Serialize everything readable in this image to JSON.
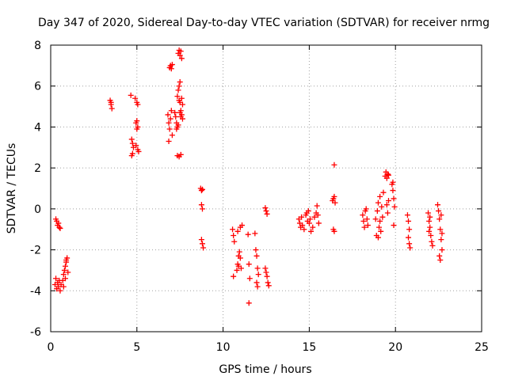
{
  "chart_data": {
    "type": "scatter",
    "title": "Day 347 of 2020, Sidereal Day-to-day VTEC variation (SDTVAR) for receiver nrmg",
    "xlabel": "GPS time / hours",
    "ylabel": "SDTVAR / TECUs",
    "xlim": [
      0,
      25
    ],
    "ylim": [
      -6,
      8
    ],
    "xticks": [
      0,
      5,
      10,
      15,
      20,
      25
    ],
    "yticks": [
      -6,
      -4,
      -2,
      0,
      2,
      4,
      6,
      8
    ],
    "grid": true,
    "marker": "+",
    "color": "#ff0000",
    "series": [
      {
        "name": "SDTVAR",
        "points": [
          [
            0.25,
            -3.7
          ],
          [
            0.3,
            -3.4
          ],
          [
            0.35,
            -3.9
          ],
          [
            0.4,
            -3.6
          ],
          [
            0.45,
            -3.8
          ],
          [
            0.5,
            -3.5
          ],
          [
            0.55,
            -4.0
          ],
          [
            0.6,
            -3.7
          ],
          [
            0.7,
            -3.5
          ],
          [
            0.75,
            -3.8
          ],
          [
            0.3,
            -0.5
          ],
          [
            0.35,
            -0.6
          ],
          [
            0.4,
            -0.8
          ],
          [
            0.45,
            -0.7
          ],
          [
            0.5,
            -0.9
          ],
          [
            0.55,
            -0.95
          ],
          [
            0.75,
            -3.2
          ],
          [
            0.8,
            -3.0
          ],
          [
            0.85,
            -2.8
          ],
          [
            0.9,
            -2.5
          ],
          [
            0.95,
            -2.4
          ],
          [
            1.0,
            -3.1
          ],
          [
            0.85,
            -3.4
          ],
          [
            0.9,
            -2.6
          ],
          [
            3.45,
            5.3
          ],
          [
            3.5,
            5.1
          ],
          [
            3.55,
            4.9
          ],
          [
            3.5,
            5.2
          ],
          [
            4.65,
            5.55
          ],
          [
            4.7,
            3.4
          ],
          [
            4.75,
            3.2
          ],
          [
            4.8,
            3.0
          ],
          [
            4.7,
            2.6
          ],
          [
            4.75,
            2.7
          ],
          [
            4.9,
            5.4
          ],
          [
            5.0,
            5.2
          ],
          [
            5.05,
            5.1
          ],
          [
            4.95,
            4.2
          ],
          [
            5.0,
            3.9
          ],
          [
            5.05,
            4.0
          ],
          [
            4.95,
            3.1
          ],
          [
            5.05,
            2.9
          ],
          [
            5.1,
            2.8
          ],
          [
            5.0,
            4.3
          ],
          [
            6.8,
            4.6
          ],
          [
            6.85,
            4.2
          ],
          [
            6.9,
            3.9
          ],
          [
            6.95,
            4.4
          ],
          [
            7.0,
            4.8
          ],
          [
            7.05,
            3.6
          ],
          [
            6.85,
            3.3
          ],
          [
            6.9,
            6.9
          ],
          [
            6.95,
            7.0
          ],
          [
            7.0,
            6.85
          ],
          [
            7.05,
            7.05
          ],
          [
            7.2,
            4.7
          ],
          [
            7.25,
            4.5
          ],
          [
            7.3,
            4.2
          ],
          [
            7.35,
            5.5
          ],
          [
            7.4,
            5.8
          ],
          [
            7.45,
            6.0
          ],
          [
            7.5,
            6.2
          ],
          [
            7.3,
            3.9
          ],
          [
            7.35,
            4.0
          ],
          [
            7.4,
            4.1
          ],
          [
            7.45,
            5.3
          ],
          [
            7.5,
            5.2
          ],
          [
            7.55,
            4.8
          ],
          [
            7.6,
            4.6
          ],
          [
            7.65,
            4.4
          ],
          [
            7.6,
            5.4
          ],
          [
            7.65,
            5.1
          ],
          [
            7.35,
            2.6
          ],
          [
            7.45,
            2.55
          ],
          [
            7.55,
            2.65
          ],
          [
            7.4,
            7.6
          ],
          [
            7.45,
            7.75
          ],
          [
            7.5,
            7.5
          ],
          [
            7.55,
            7.7
          ],
          [
            7.6,
            7.35
          ],
          [
            7.5,
            4.7
          ],
          [
            7.55,
            4.5
          ],
          [
            8.7,
            1.0
          ],
          [
            8.75,
            0.9
          ],
          [
            8.8,
            0.95
          ],
          [
            8.75,
            0.2
          ],
          [
            8.8,
            0.0
          ],
          [
            8.75,
            -1.5
          ],
          [
            8.8,
            -1.7
          ],
          [
            8.85,
            -1.9
          ],
          [
            10.55,
            -1.0
          ],
          [
            10.6,
            -1.3
          ],
          [
            10.65,
            -1.6
          ],
          [
            10.6,
            -3.3
          ],
          [
            10.8,
            -3.0
          ],
          [
            10.85,
            -2.7
          ],
          [
            10.9,
            -2.3
          ],
          [
            10.95,
            -2.1
          ],
          [
            11.0,
            -2.4
          ],
          [
            11.05,
            -2.9
          ],
          [
            11.0,
            -0.9
          ],
          [
            11.1,
            -0.8
          ],
          [
            10.85,
            -1.1
          ],
          [
            10.9,
            -2.8
          ],
          [
            11.45,
            -1.25
          ],
          [
            11.5,
            -2.7
          ],
          [
            11.55,
            -3.4
          ],
          [
            11.5,
            -4.6
          ],
          [
            11.85,
            -1.2
          ],
          [
            11.9,
            -2.0
          ],
          [
            11.95,
            -2.3
          ],
          [
            12.0,
            -2.9
          ],
          [
            12.05,
            -3.2
          ],
          [
            11.95,
            -3.6
          ],
          [
            12.0,
            -3.8
          ],
          [
            12.45,
            0.05
          ],
          [
            12.5,
            -0.1
          ],
          [
            12.55,
            -0.25
          ],
          [
            12.45,
            -2.9
          ],
          [
            12.5,
            -3.1
          ],
          [
            12.55,
            -3.3
          ],
          [
            12.6,
            -3.6
          ],
          [
            12.65,
            -3.75
          ],
          [
            14.4,
            -0.5
          ],
          [
            14.45,
            -0.7
          ],
          [
            14.5,
            -0.9
          ],
          [
            14.55,
            -0.4
          ],
          [
            14.6,
            -0.8
          ],
          [
            14.7,
            -1.0
          ],
          [
            14.8,
            -0.3
          ],
          [
            14.85,
            -0.2
          ],
          [
            14.9,
            -0.6
          ],
          [
            14.95,
            -0.1
          ],
          [
            15.0,
            -0.7
          ],
          [
            15.05,
            -0.5
          ],
          [
            15.1,
            -1.1
          ],
          [
            15.2,
            -0.9
          ],
          [
            15.3,
            -0.4
          ],
          [
            15.4,
            -0.2
          ],
          [
            15.45,
            0.15
          ],
          [
            15.5,
            -0.3
          ],
          [
            15.55,
            -0.7
          ],
          [
            16.35,
            0.4
          ],
          [
            16.4,
            0.5
          ],
          [
            16.45,
            0.6
          ],
          [
            16.5,
            0.3
          ],
          [
            16.45,
            2.15
          ],
          [
            16.4,
            -1.0
          ],
          [
            16.45,
            -1.1
          ],
          [
            18.1,
            -0.3
          ],
          [
            18.15,
            -0.6
          ],
          [
            18.2,
            -0.9
          ],
          [
            18.25,
            -0.1
          ],
          [
            18.3,
            0.0
          ],
          [
            18.35,
            -0.5
          ],
          [
            18.4,
            -0.8
          ],
          [
            18.85,
            -0.5
          ],
          [
            18.9,
            -1.3
          ],
          [
            18.95,
            -0.1
          ],
          [
            19.0,
            0.3
          ],
          [
            19.05,
            -0.9
          ],
          [
            19.1,
            0.6
          ],
          [
            19.15,
            -1.1
          ],
          [
            19.2,
            0.1
          ],
          [
            19.25,
            -0.4
          ],
          [
            19.3,
            0.8
          ],
          [
            19.0,
            -1.4
          ],
          [
            19.1,
            -0.6
          ],
          [
            19.4,
            1.6
          ],
          [
            19.45,
            1.8
          ],
          [
            19.5,
            1.5
          ],
          [
            19.55,
            1.7
          ],
          [
            19.6,
            1.65
          ],
          [
            19.5,
            0.2
          ],
          [
            19.55,
            -0.2
          ],
          [
            19.6,
            0.4
          ],
          [
            19.8,
            1.2
          ],
          [
            19.85,
            0.9
          ],
          [
            19.9,
            0.5
          ],
          [
            19.95,
            0.1
          ],
          [
            19.9,
            -0.8
          ],
          [
            19.85,
            1.3
          ],
          [
            20.7,
            -0.3
          ],
          [
            20.75,
            -0.6
          ],
          [
            20.8,
            -1.0
          ],
          [
            20.75,
            -1.4
          ],
          [
            20.8,
            -1.7
          ],
          [
            20.85,
            -1.9
          ],
          [
            21.9,
            -0.2
          ],
          [
            21.95,
            -0.6
          ],
          [
            22.0,
            -0.9
          ],
          [
            22.05,
            -1.3
          ],
          [
            22.1,
            -1.6
          ],
          [
            22.15,
            -1.8
          ],
          [
            21.95,
            -1.1
          ],
          [
            22.0,
            -0.4
          ],
          [
            22.45,
            0.2
          ],
          [
            22.5,
            -0.1
          ],
          [
            22.55,
            -0.5
          ],
          [
            22.6,
            -1.0
          ],
          [
            22.65,
            -1.5
          ],
          [
            22.7,
            -2.0
          ],
          [
            22.55,
            -2.3
          ],
          [
            22.6,
            -2.5
          ],
          [
            22.65,
            -0.3
          ],
          [
            22.7,
            -1.2
          ]
        ]
      }
    ]
  }
}
